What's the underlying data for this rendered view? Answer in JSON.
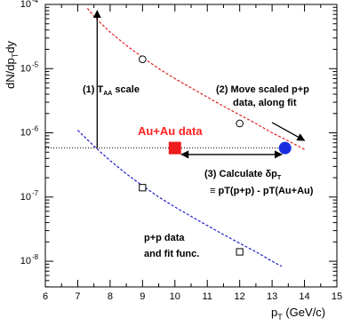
{
  "chart_data": {
    "type": "scatter",
    "xlabel": "p_T (GeV/c)",
    "ylabel": "dN/dp_T dy",
    "xlim": [
      6,
      15
    ],
    "ylim_log10": [
      -8.4,
      -4.0
    ],
    "y_scale": "log",
    "grid": false,
    "x_ticks": [
      6,
      7,
      8,
      9,
      10,
      11,
      12,
      13,
      14,
      15
    ],
    "y_ticks": [
      {
        "exp": -8,
        "label": "10",
        "sup": "-8"
      },
      {
        "exp": -7,
        "label": "10",
        "sup": "-7"
      },
      {
        "exp": -6,
        "label": "10",
        "sup": "-6"
      },
      {
        "exp": -5,
        "label": "10",
        "sup": "-5"
      },
      {
        "exp": -4,
        "label": "10",
        "sup": "-4"
      }
    ],
    "series": [
      {
        "name": "p+p data and fit func.",
        "color": "#1a1acc",
        "marker": "open-square",
        "points": [
          {
            "x": 9,
            "y": 1.4e-07
          },
          {
            "x": 12,
            "y": 1.4e-08
          }
        ],
        "fit": [
          {
            "x": 7.0,
            "y": 1.1e-06
          },
          {
            "x": 7.5,
            "y": 6.2e-07
          },
          {
            "x": 8.0,
            "y": 3.7e-07
          },
          {
            "x": 8.5,
            "y": 2.3e-07
          },
          {
            "x": 9.0,
            "y": 1.5e-07
          },
          {
            "x": 9.5,
            "y": 1e-07
          },
          {
            "x": 10.0,
            "y": 7e-08
          },
          {
            "x": 10.5,
            "y": 5e-08
          },
          {
            "x": 11.0,
            "y": 3.6e-08
          },
          {
            "x": 11.5,
            "y": 2.6e-08
          },
          {
            "x": 12.0,
            "y": 1.9e-08
          },
          {
            "x": 12.5,
            "y": 1.4e-08
          },
          {
            "x": 13.0,
            "y": 1e-08
          },
          {
            "x": 13.3,
            "y": 8.3e-09
          }
        ]
      },
      {
        "name": "scaled p+p",
        "color": "#e02020",
        "marker": "open-circle",
        "points": [
          {
            "x": 9,
            "y": 1.4e-05
          },
          {
            "x": 12,
            "y": 1.4e-06
          }
        ],
        "fit": [
          {
            "x": 7.3,
            "y": 8.7e-05
          },
          {
            "x": 7.5,
            "y": 6.5e-05
          },
          {
            "x": 8.0,
            "y": 3.7e-05
          },
          {
            "x": 8.5,
            "y": 2.3e-05
          },
          {
            "x": 9.0,
            "y": 1.5e-05
          },
          {
            "x": 9.5,
            "y": 1e-05
          },
          {
            "x": 10.0,
            "y": 7e-06
          },
          {
            "x": 10.5,
            "y": 5e-06
          },
          {
            "x": 11.0,
            "y": 3.6e-06
          },
          {
            "x": 11.5,
            "y": 2.6e-06
          },
          {
            "x": 12.0,
            "y": 1.9e-06
          },
          {
            "x": 12.5,
            "y": 1.4e-06
          },
          {
            "x": 13.0,
            "y": 1e-06
          },
          {
            "x": 13.5,
            "y": 7.5e-07
          },
          {
            "x": 14.0,
            "y": 5.5e-07
          }
        ]
      },
      {
        "name": "Au+Au data",
        "color": "#e02020",
        "marker": "filled-square",
        "points": [
          {
            "x": 10,
            "y": 5.8e-07
          }
        ]
      },
      {
        "name": "moved scaled p+p",
        "color": "#1a2ee0",
        "marker": "filled-circle",
        "points": [
          {
            "x": 13.4,
            "y": 5.8e-07
          }
        ]
      }
    ],
    "reference_line": {
      "y": 5.8e-07,
      "x_from": 6,
      "x_to": 13.4,
      "style": "dotted"
    },
    "arrows": [
      {
        "label": "taa",
        "from": {
          "x": 7.6,
          "y": 5.8e-07
        },
        "to": {
          "x": 7.6,
          "y": 8e-05
        }
      },
      {
        "label": "move",
        "from": {
          "x": 13.0,
          "y": 1.45e-06
        },
        "to": {
          "x": 14.0,
          "y": 7.6e-07
        }
      },
      {
        "label": "delta",
        "from": {
          "x": 10.2,
          "y": 4.6e-07
        },
        "to": {
          "x": 13.3,
          "y": 4.6e-07
        }
      }
    ]
  },
  "annotations": {
    "taa_prefix": "(1) T",
    "taa_sub": "AA",
    "taa_suffix": " scale",
    "move_line1": "(2) Move scaled p+p",
    "move_line2": "data, along fit",
    "auau": "Au+Au data",
    "calc_prefix": "(3) Calculate δp",
    "calc_sub": "T",
    "calc_line2": "≡ pT(p+p) - pT(Au+Au)",
    "pp_line1": "p+p data",
    "pp_line2": "and fit func."
  },
  "labels": {
    "x_main": "p",
    "x_sub": "T",
    "x_unit": " (GeV/c)",
    "y_main": "dN/dp",
    "y_sub": "T",
    "y_tail": "dy"
  }
}
